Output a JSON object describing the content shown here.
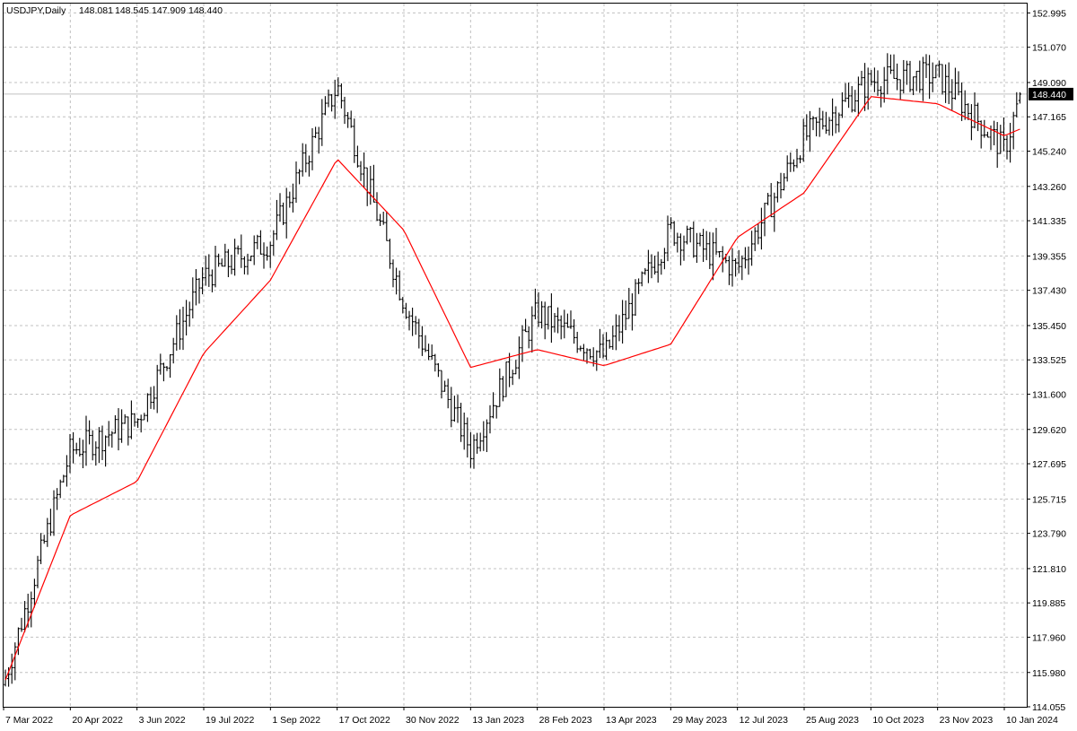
{
  "header": {
    "symbol": "USDJPY,Daily",
    "open": "148.081",
    "high": "148.545",
    "low": "147.909",
    "close": "148.440"
  },
  "current_price_label": "148.440",
  "colors": {
    "background": "#ffffff",
    "bars": "#000000",
    "grid": "#c0c0c0",
    "moving_average": "#ff0000",
    "price_tag_bg": "#000000",
    "price_tag_text": "#ffffff",
    "price_line": "#c0c0c0"
  },
  "chart_data": {
    "type": "ohlc",
    "title": "USDJPY,Daily",
    "ylim": [
      114.055,
      153.52
    ],
    "y_ticks": [
      "152.995",
      "151.070",
      "149.090",
      "147.165",
      "145.240",
      "143.260",
      "141.335",
      "139.355",
      "137.430",
      "135.450",
      "133.525",
      "131.600",
      "129.620",
      "127.695",
      "125.715",
      "123.790",
      "121.810",
      "119.885",
      "117.960",
      "115.980",
      "114.055"
    ],
    "x_ticks": [
      "7 Mar 2022",
      "20 Apr 2022",
      "3 Jun 2022",
      "19 Jul 2022",
      "1 Sep 2022",
      "17 Oct 2022",
      "30 Nov 2022",
      "13 Jan 2023",
      "28 Feb 2023",
      "13 Apr 2023",
      "29 May 2023",
      "12 Jul 2023",
      "25 Aug 2023",
      "10 Oct 2023",
      "23 Nov 2023",
      "10 Jan 2024"
    ],
    "grid": true,
    "price_series": {
      "name": "USDJPY",
      "dates": [
        "7 Mar 2022",
        "20 Apr 2022",
        "3 Jun 2022",
        "19 Jul 2022",
        "1 Sep 2022",
        "17 Oct 2022",
        "30 Nov 2022",
        "13 Jan 2023",
        "28 Feb 2023",
        "13 Apr 2023",
        "29 May 2023",
        "12 Jul 2023",
        "25 Aug 2023",
        "10 Oct 2023",
        "23 Nov 2023",
        "10 Jan 2024"
      ],
      "approx_close": [
        115.3,
        128.4,
        130.1,
        138.2,
        140.2,
        148.9,
        136.8,
        128.5,
        136.2,
        133.7,
        140.8,
        138.6,
        146.0,
        149.2,
        149.5,
        145.3
      ],
      "last": {
        "open": 148.081,
        "high": 148.545,
        "low": 147.909,
        "close": 148.44
      }
    },
    "moving_average": {
      "approx_values": [
        115.3,
        124.8,
        126.7,
        133.9,
        138.0,
        144.8,
        140.8,
        133.1,
        134.1,
        133.2,
        134.4,
        140.4,
        142.9,
        148.3,
        147.9,
        146.1
      ]
    }
  }
}
